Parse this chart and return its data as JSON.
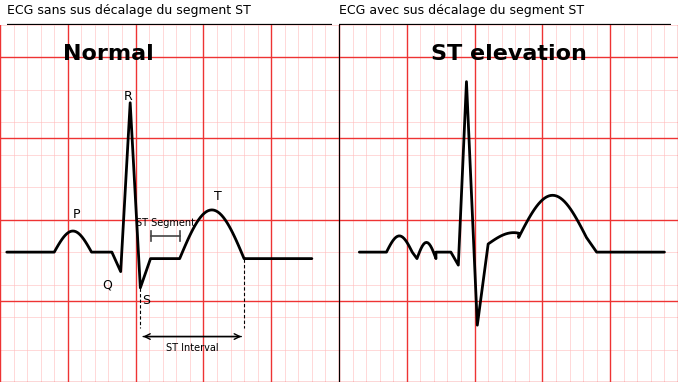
{
  "title_left": "ECG sans sus décalage du segment ST",
  "title_right": "ECG avec sus décalage du segment ST",
  "label_normal": "Normal",
  "label_elevation": "ST elevation",
  "label_P": "P",
  "label_Q": "Q",
  "label_R": "R",
  "label_S": "S",
  "label_T": "T",
  "label_st_segment": "ST Segment",
  "label_st_interval": "ST Interval",
  "bg_color": "#ffffff",
  "grid_major_color": "#ee3333",
  "grid_minor_color": "#ffbbbb",
  "ecg_color": "#000000",
  "line_width": 2.0,
  "fig_width": 6.78,
  "fig_height": 3.82,
  "title_fontsize": 9,
  "label_fontsize": 16,
  "wave_label_fontsize": 9,
  "annotation_fontsize": 7
}
